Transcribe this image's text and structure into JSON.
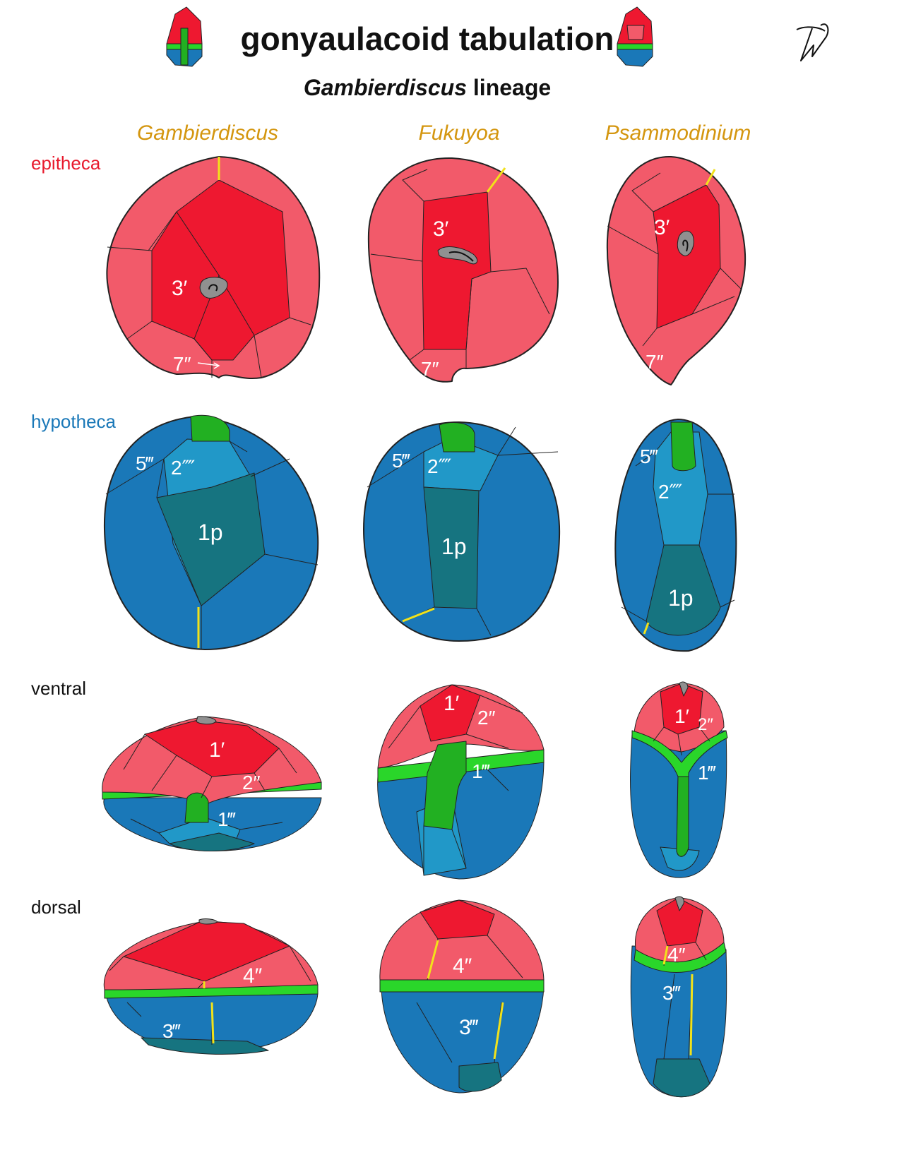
{
  "header": {
    "title": "gonyaulacoid tabulation",
    "subtitle_italic": "Gambierdiscus",
    "subtitle_rest": " lineage"
  },
  "columns": [
    "Gambierdiscus",
    "Fukuyoa",
    "Psammodinium"
  ],
  "rows": [
    {
      "label": "epitheca",
      "color": "#e8192c"
    },
    {
      "label": "hypotheca",
      "color": "#1a78b8"
    },
    {
      "label": "ventral",
      "color": "#111111"
    },
    {
      "label": "dorsal",
      "color": "#111111"
    }
  ],
  "colors": {
    "epitheca_light": "#f25a6a",
    "epitheca_dark": "#ee1830",
    "hypotheca": "#1a78b8",
    "hypotheca_light": "#2198c8",
    "antapical": "#167480",
    "cingulum": "#2ad62a",
    "sulcus": "#22b022",
    "apical_pore": "#909090",
    "suture_highlight": "#f2e21a"
  },
  "plate_labels": {
    "epi_g_3p": "3′",
    "epi_g_7pp": "7″",
    "epi_f_3p": "3′",
    "epi_f_7pp": "7″",
    "epi_p_3p": "3′",
    "epi_p_7pp": "7″",
    "hyp_g_5ppp": "5‴",
    "hyp_g_2pppp": "2⁗",
    "hyp_g_1p": "1p",
    "hyp_f_5ppp": "5‴",
    "hyp_f_2pppp": "2⁗",
    "hyp_f_1p": "1p",
    "hyp_p_5ppp": "5‴",
    "hyp_p_2pppp": "2⁗",
    "hyp_p_1p": "1p",
    "ven_g_1p": "1′",
    "ven_g_2pp": "2″",
    "ven_g_1ppp": "1‴",
    "ven_f_1p": "1′",
    "ven_f_2pp": "2″",
    "ven_f_1ppp": "1‴",
    "ven_p_1p": "1′",
    "ven_p_2pp": "2″",
    "ven_p_1ppp": "1‴",
    "dor_g_4pp": "4″",
    "dor_g_3ppp": "3‴",
    "dor_f_4pp": "4″",
    "dor_f_3ppp": "3‴",
    "dor_p_4pp": "4″",
    "dor_p_3ppp": "3‴"
  }
}
